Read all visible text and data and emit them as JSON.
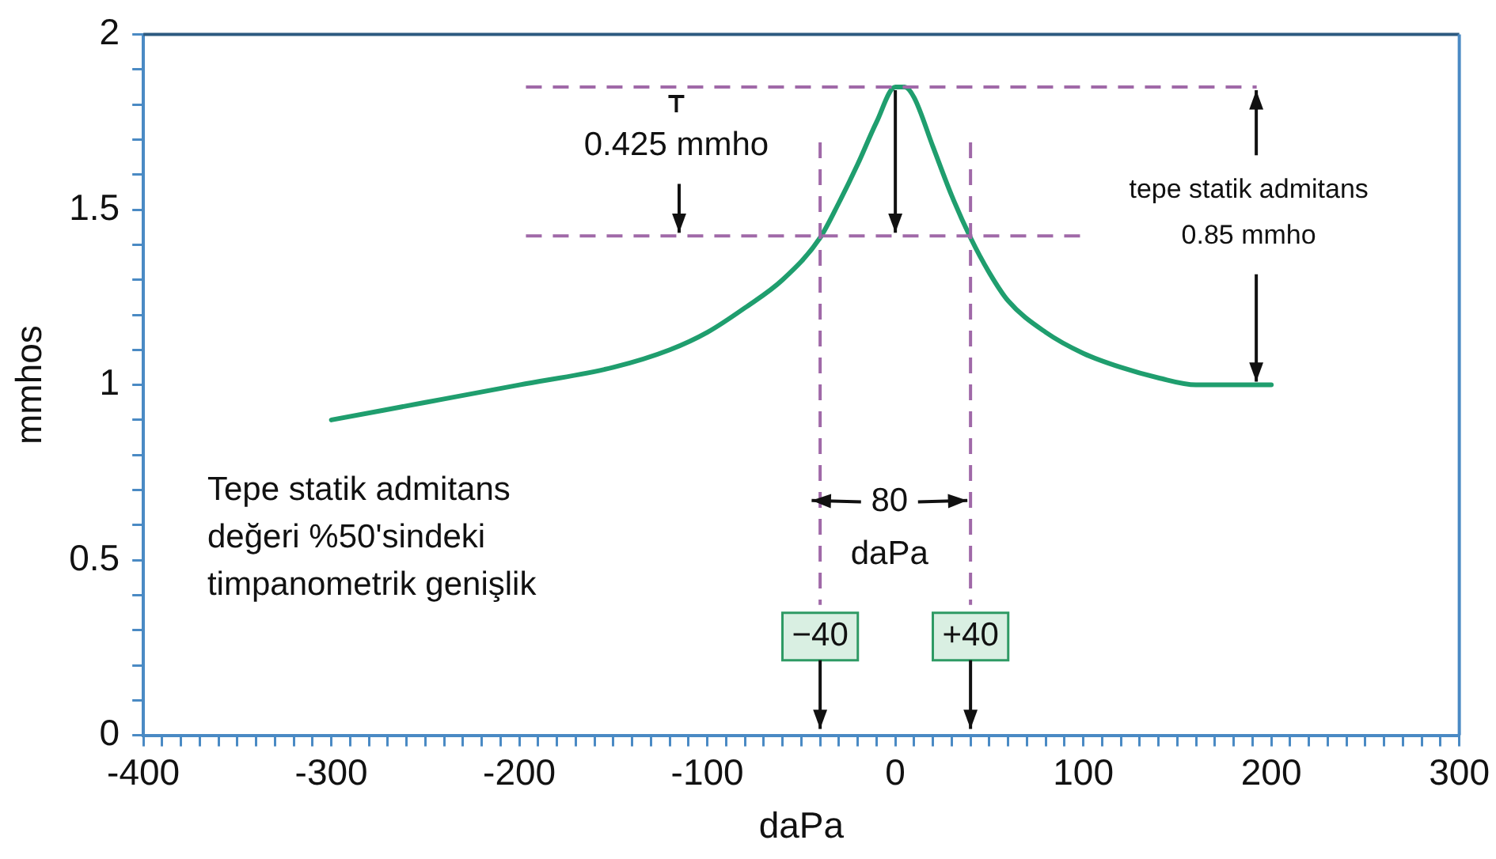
{
  "chart_data": {
    "type": "line",
    "xlabel": "daPa",
    "ylabel": "mmhos",
    "series": [
      {
        "color": "#1f9e6e",
        "x": [
          -300,
          -250,
          -200,
          -150,
          -120,
          -100,
          -80,
          -60,
          -40,
          -30,
          -20,
          -10,
          0,
          5,
          10,
          20,
          30,
          40,
          50,
          60,
          80,
          100,
          120,
          140,
          160,
          180,
          200
        ],
        "values": [
          0.9,
          0.95,
          1.0,
          1.05,
          1.1,
          1.15,
          1.22,
          1.3,
          1.42,
          1.52,
          1.63,
          1.75,
          1.85,
          1.85,
          1.82,
          1.68,
          1.54,
          1.42,
          1.32,
          1.24,
          1.15,
          1.09,
          1.05,
          1.02,
          1.0,
          1.0,
          1.0
        ]
      }
    ],
    "xlim": [
      -400,
      300
    ],
    "ylim": [
      0,
      2
    ],
    "xticks": [
      -400,
      {
        "value": -390,
        "label": null
      },
      {
        "value": -380,
        "label": null
      },
      {
        "value": -370,
        "label": null
      },
      {
        "value": -360,
        "label": null
      },
      {
        "value": -350,
        "label": null
      },
      {
        "value": -340,
        "label": null
      },
      {
        "value": -330,
        "label": null
      },
      {
        "value": -320,
        "label": null
      },
      {
        "value": -310,
        "label": null
      },
      -300,
      {
        "value": -290,
        "label": null
      },
      {
        "value": -280,
        "label": null
      },
      {
        "value": -270,
        "label": null
      },
      {
        "value": -260,
        "label": null
      },
      {
        "value": -250,
        "label": null
      },
      {
        "value": -240,
        "label": null
      },
      {
        "value": -230,
        "label": null
      },
      {
        "value": -220,
        "label": null
      },
      {
        "value": -210,
        "label": null
      },
      -200,
      {
        "value": -190,
        "label": null
      },
      {
        "value": -180,
        "label": null
      },
      {
        "value": -170,
        "label": null
      },
      {
        "value": -160,
        "label": null
      },
      {
        "value": -150,
        "label": null
      },
      {
        "value": -140,
        "label": null
      },
      {
        "value": -130,
        "label": null
      },
      {
        "value": -120,
        "label": null
      },
      {
        "value": -110,
        "label": null
      },
      -100,
      {
        "value": -90,
        "label": null
      },
      {
        "value": -80,
        "label": null
      },
      {
        "value": -70,
        "label": null
      },
      {
        "value": -60,
        "label": null
      },
      {
        "value": -50,
        "label": null
      },
      {
        "value": -40,
        "label": null
      },
      {
        "value": -30,
        "label": null
      },
      {
        "value": -20,
        "label": null
      },
      {
        "value": -10,
        "label": null
      },
      0,
      {
        "value": 10,
        "label": null
      },
      {
        "value": 20,
        "label": null
      },
      {
        "value": 30,
        "label": null
      },
      {
        "value": 40,
        "label": null
      },
      {
        "value": 50,
        "label": null
      },
      {
        "value": 60,
        "label": null
      },
      {
        "value": 70,
        "label": null
      },
      {
        "value": 80,
        "label": null
      },
      {
        "value": 90,
        "label": null
      },
      100,
      {
        "value": 110,
        "label": null
      },
      {
        "value": 120,
        "label": null
      },
      {
        "value": 130,
        "label": null
      },
      {
        "value": 140,
        "label": null
      },
      {
        "value": 150,
        "label": null
      },
      {
        "value": 160,
        "label": null
      },
      {
        "value": 170,
        "label": null
      },
      {
        "value": 180,
        "label": null
      },
      {
        "value": 190,
        "label": null
      },
      200,
      {
        "value": 210,
        "label": null
      },
      {
        "value": 220,
        "label": null
      },
      {
        "value": 230,
        "label": null
      },
      {
        "value": 240,
        "label": null
      },
      {
        "value": 250,
        "label": null
      },
      {
        "value": 260,
        "label": null
      },
      {
        "value": 270,
        "label": null
      },
      {
        "value": 280,
        "label": null
      },
      {
        "value": 290,
        "label": null
      },
      300
    ],
    "yticks": [
      0,
      {
        "value": 0.1,
        "label": null
      },
      {
        "value": 0.2,
        "label": null
      },
      {
        "value": 0.3,
        "label": null
      },
      {
        "value": 0.4,
        "label": null
      },
      0.5,
      {
        "value": 0.6,
        "label": null
      },
      {
        "value": 0.7,
        "label": null
      },
      {
        "value": 0.8,
        "label": null
      },
      {
        "value": 0.9,
        "label": null
      },
      1,
      {
        "value": 1.1,
        "label": null
      },
      {
        "value": 1.2,
        "label": null
      },
      {
        "value": 1.3,
        "label": null
      },
      {
        "value": 1.4,
        "label": null
      },
      1.5,
      {
        "value": 1.6,
        "label": null
      },
      {
        "value": 1.7,
        "label": null
      },
      {
        "value": 1.8,
        "label": null
      },
      {
        "value": 1.9,
        "label": null
      },
      2
    ],
    "grid": false,
    "legend": false,
    "marker": "none",
    "line_style": "solid",
    "ref_lines": [
      {
        "axis": "y",
        "value": 1.85,
        "color": "#a069a8",
        "line_style": "dashed"
      },
      {
        "axis": "y",
        "value": 1.425,
        "color": "#a069a8",
        "line_style": "dashed"
      },
      {
        "axis": "x",
        "value": -40,
        "color": "#a069a8",
        "line_style": "dashed"
      },
      {
        "axis": "x",
        "value": 40,
        "color": "#a069a8",
        "line_style": "dashed"
      }
    ],
    "annotations": [
      {
        "text": "0.425 mmho",
        "x": -115,
        "y": 1.425
      },
      {
        "text": "tepe statik admitans",
        "x": 192,
        "y": 1.85
      },
      {
        "text": "0.85 mmho",
        "x": 192,
        "y": 1.0
      },
      {
        "text": "80",
        "x": 40,
        "y": 0.67
      },
      "daPa",
      "−40",
      "+40",
      "Tepe statik admitans\ndeğeri %50'sindeki\ntimpanometrik genişlik"
    ]
  }
}
